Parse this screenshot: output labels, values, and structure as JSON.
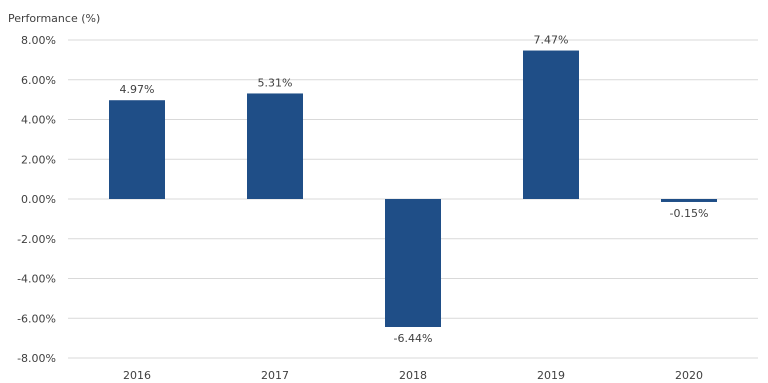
{
  "chart_data": {
    "type": "bar",
    "ylabel": "Performance (%)",
    "categories": [
      "2016",
      "2017",
      "2018",
      "2019",
      "2020"
    ],
    "values": [
      4.97,
      5.31,
      -6.44,
      7.47,
      -0.15
    ],
    "data_labels": [
      "4.97%",
      "5.31%",
      "-6.44%",
      "7.47%",
      "-0.15%"
    ],
    "ylim": [
      -8,
      8
    ],
    "yticks": [
      8,
      6,
      4,
      2,
      0,
      -2,
      -4,
      -6,
      -8
    ],
    "ytick_labels": [
      "8.00%",
      "6.00%",
      "4.00%",
      "2.00%",
      "0.00%",
      "-2.00%",
      "-4.00%",
      "-6.00%",
      "-8.00%"
    ],
    "grid": true,
    "bar_color": "#1f4e87",
    "grid_color": "#d9d9d9"
  }
}
